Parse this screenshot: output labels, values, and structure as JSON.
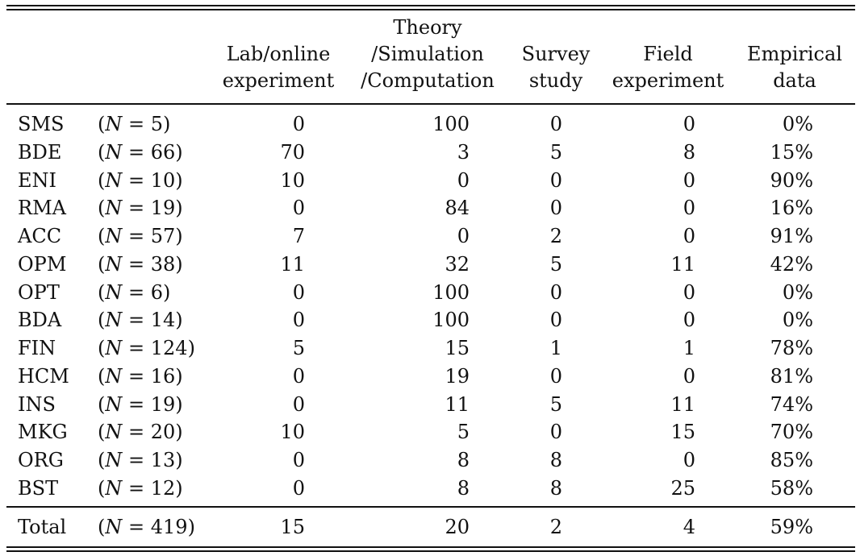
{
  "headers": {
    "lab": [
      "Lab/online",
      "experiment"
    ],
    "theory": [
      "Theory",
      "/Simulation",
      "/Computation"
    ],
    "survey": [
      "Survey",
      "study"
    ],
    "field": [
      "Field",
      "experiment"
    ],
    "empirical": [
      "Empirical",
      "data"
    ]
  },
  "rows": [
    {
      "code": "SMS",
      "n": "5",
      "lab": "0",
      "theory": "100",
      "survey": "0",
      "field": "0",
      "empirical": "0%"
    },
    {
      "code": "BDE",
      "n": "66",
      "lab": "70",
      "theory": "3",
      "survey": "5",
      "field": "8",
      "empirical": "15%"
    },
    {
      "code": "ENI",
      "n": "10",
      "lab": "10",
      "theory": "0",
      "survey": "0",
      "field": "0",
      "empirical": "90%"
    },
    {
      "code": "RMA",
      "n": "19",
      "lab": "0",
      "theory": "84",
      "survey": "0",
      "field": "0",
      "empirical": "16%"
    },
    {
      "code": "ACC",
      "n": "57",
      "lab": "7",
      "theory": "0",
      "survey": "2",
      "field": "0",
      "empirical": "91%"
    },
    {
      "code": "OPM",
      "n": "38",
      "lab": "11",
      "theory": "32",
      "survey": "5",
      "field": "11",
      "empirical": "42%"
    },
    {
      "code": "OPT",
      "n": "6",
      "lab": "0",
      "theory": "100",
      "survey": "0",
      "field": "0",
      "empirical": "0%"
    },
    {
      "code": "BDA",
      "n": "14",
      "lab": "0",
      "theory": "100",
      "survey": "0",
      "field": "0",
      "empirical": "0%"
    },
    {
      "code": "FIN",
      "n": "124",
      "lab": "5",
      "theory": "15",
      "survey": "1",
      "field": "1",
      "empirical": "78%"
    },
    {
      "code": "HCM",
      "n": "16",
      "lab": "0",
      "theory": "19",
      "survey": "0",
      "field": "0",
      "empirical": "81%"
    },
    {
      "code": "INS",
      "n": "19",
      "lab": "0",
      "theory": "11",
      "survey": "5",
      "field": "11",
      "empirical": "74%"
    },
    {
      "code": "MKG",
      "n": "20",
      "lab": "10",
      "theory": "5",
      "survey": "0",
      "field": "15",
      "empirical": "70%"
    },
    {
      "code": "ORG",
      "n": "13",
      "lab": "0",
      "theory": "8",
      "survey": "8",
      "field": "0",
      "empirical": "85%"
    },
    {
      "code": "BST",
      "n": "12",
      "lab": "0",
      "theory": "8",
      "survey": "8",
      "field": "25",
      "empirical": "58%"
    }
  ],
  "total": {
    "code": "Total",
    "n": "419",
    "lab": "15",
    "theory": "20",
    "survey": "2",
    "field": "4",
    "empirical": "59%"
  }
}
